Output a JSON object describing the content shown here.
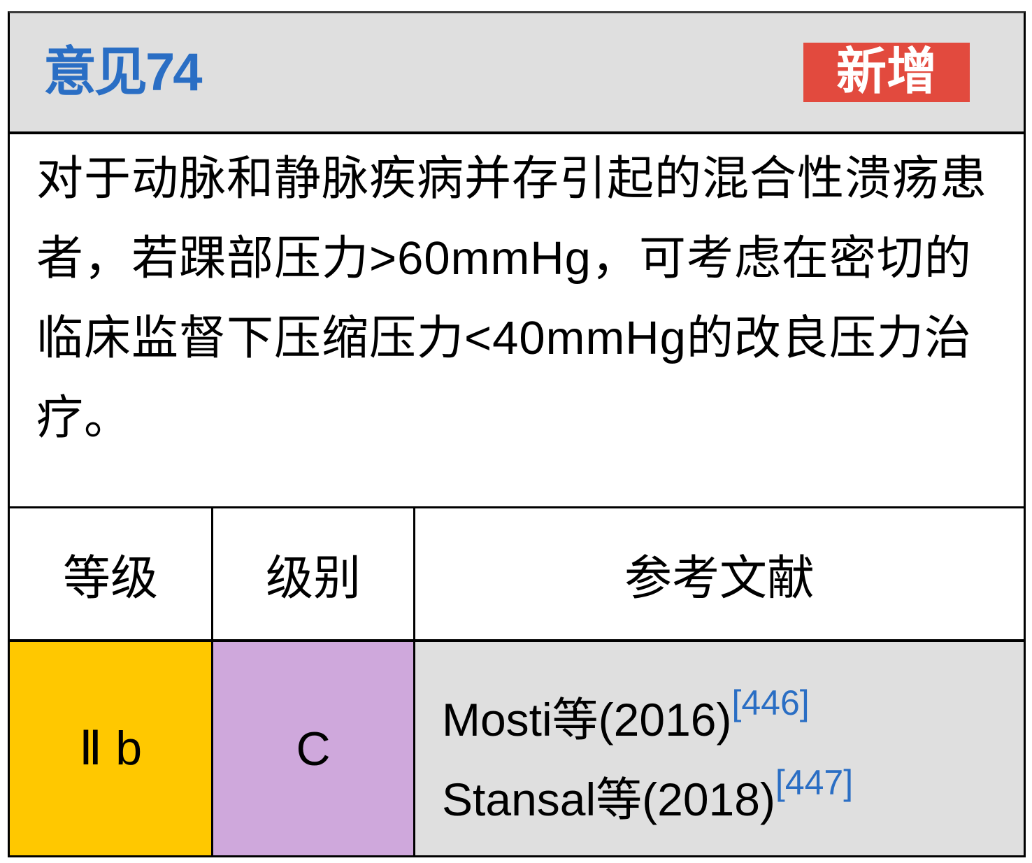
{
  "header": {
    "title": "意见74",
    "badge": "新增",
    "title_color": "#2a6ec4",
    "badge_color": "#e24a3e"
  },
  "body_text": "对于动脉和静脉疾病并存引起的混合性溃疡患者，若踝部压力>60mmHg，可考虑在密切的临床监督下压缩压力<40mmHg的改良压力治疗。",
  "table": {
    "headers": [
      "等级",
      "级别",
      "参考文献"
    ],
    "grade": {
      "value": "Ⅱ b",
      "color": "#ffc800"
    },
    "level": {
      "value": "C",
      "color": "#cfa8dc"
    },
    "references": [
      {
        "text": "Mosti等(2016)",
        "cite": "[446]"
      },
      {
        "text": "Stansal等(2018)",
        "cite": "[447]"
      }
    ]
  }
}
